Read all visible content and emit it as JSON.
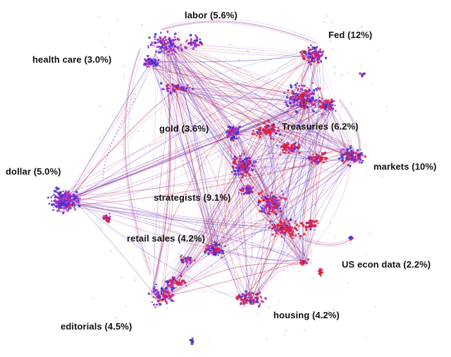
{
  "colors": {
    "blue": "#3a2fd6",
    "red": "#e0203a",
    "purple": "#b02fd0",
    "edge_red": "#c0182c",
    "edge_purple": "#a040c0",
    "edge_blue": "#5040d0"
  },
  "clusters": [
    {
      "id": "labor",
      "text": "labor (5.6%)"
    },
    {
      "id": "fed",
      "text": "Fed (12%)"
    },
    {
      "id": "health-care",
      "text": "health care (3.0%)"
    },
    {
      "id": "gold",
      "text": "gold (3.6%)"
    },
    {
      "id": "treasuries",
      "text": "Treasuries (6.2%)"
    },
    {
      "id": "dollar",
      "text": "dollar (5.0%)"
    },
    {
      "id": "markets",
      "text": "markets (10%)"
    },
    {
      "id": "strategists",
      "text": "strategists (9.1%)"
    },
    {
      "id": "retail-sales",
      "text": "retail sales (4.2%)"
    },
    {
      "id": "us-econ-data",
      "text": "US econ data (2.2%)"
    },
    {
      "id": "housing",
      "text": "housing (4.2%)"
    },
    {
      "id": "editorials",
      "text": "editorials (4.5%)"
    }
  ]
}
